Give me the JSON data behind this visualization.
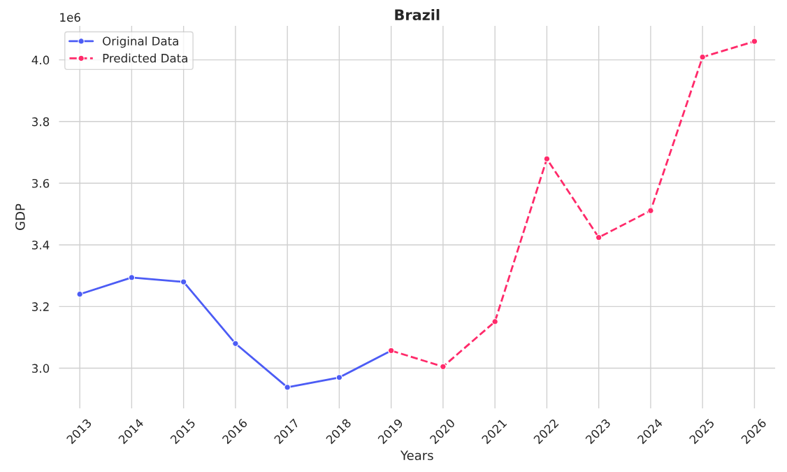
{
  "chart_data": {
    "type": "line",
    "title": "Brazil",
    "xlabel": "Years",
    "ylabel": "GDP",
    "annotations": [
      "1e6"
    ],
    "series": [
      {
        "name": "Original Data",
        "color": "#4c5cf5",
        "line_style": "solid",
        "x": [
          2013,
          2014,
          2015,
          2016,
          2017,
          2018,
          2019
        ],
        "values": [
          3.24,
          3.294,
          3.28,
          3.08,
          2.938,
          2.97,
          3.057
        ]
      },
      {
        "name": "Predicted Data",
        "color": "#ff2a6a",
        "line_style": "dashed",
        "x": [
          2019,
          2020,
          2021,
          2022,
          2023,
          2024,
          2025,
          2026
        ],
        "values": [
          3.057,
          3.005,
          3.151,
          3.679,
          3.424,
          3.511,
          4.009,
          4.06
        ]
      }
    ],
    "xlim": [
      2012.6,
      2026.4
    ],
    "xticks": [
      2013,
      2014,
      2015,
      2016,
      2017,
      2018,
      2019,
      2020,
      2021,
      2022,
      2023,
      2024,
      2025,
      2026
    ],
    "ylim": [
      2.87,
      4.11
    ],
    "yticks": [
      {
        "value": 3.0,
        "label": "3.0"
      },
      {
        "value": 3.2,
        "label": "3.2"
      },
      {
        "value": 3.4,
        "label": "3.4"
      },
      {
        "value": 3.6,
        "label": "3.6"
      },
      {
        "value": 3.8,
        "label": "3.8"
      },
      {
        "value": 4.0,
        "label": "4.0"
      }
    ],
    "grid": true,
    "legend": "top left",
    "marker": "circle"
  }
}
